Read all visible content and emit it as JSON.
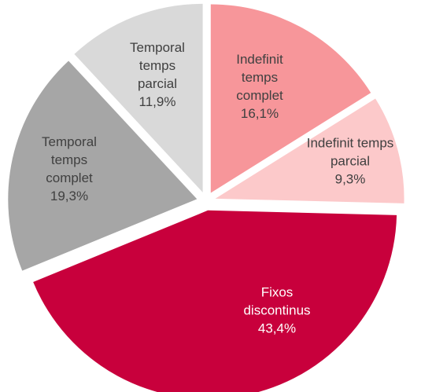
{
  "chart_data": {
    "type": "pie",
    "categories": [
      "Indefinit temps complet",
      "Indefinit temps parcial",
      "Fixos discontinus",
      "Temporal temps complet",
      "Temporal temps parcial"
    ],
    "values": [
      16.1,
      9.3,
      43.4,
      19.3,
      11.9
    ],
    "value_labels": [
      "16,1%",
      "9,3%",
      "43,4%",
      "19,3%",
      "11,9%"
    ],
    "colors": [
      "#f7969a",
      "#fcc9ca",
      "#c8003c",
      "#a6a6a6",
      "#d9d9d9"
    ]
  }
}
